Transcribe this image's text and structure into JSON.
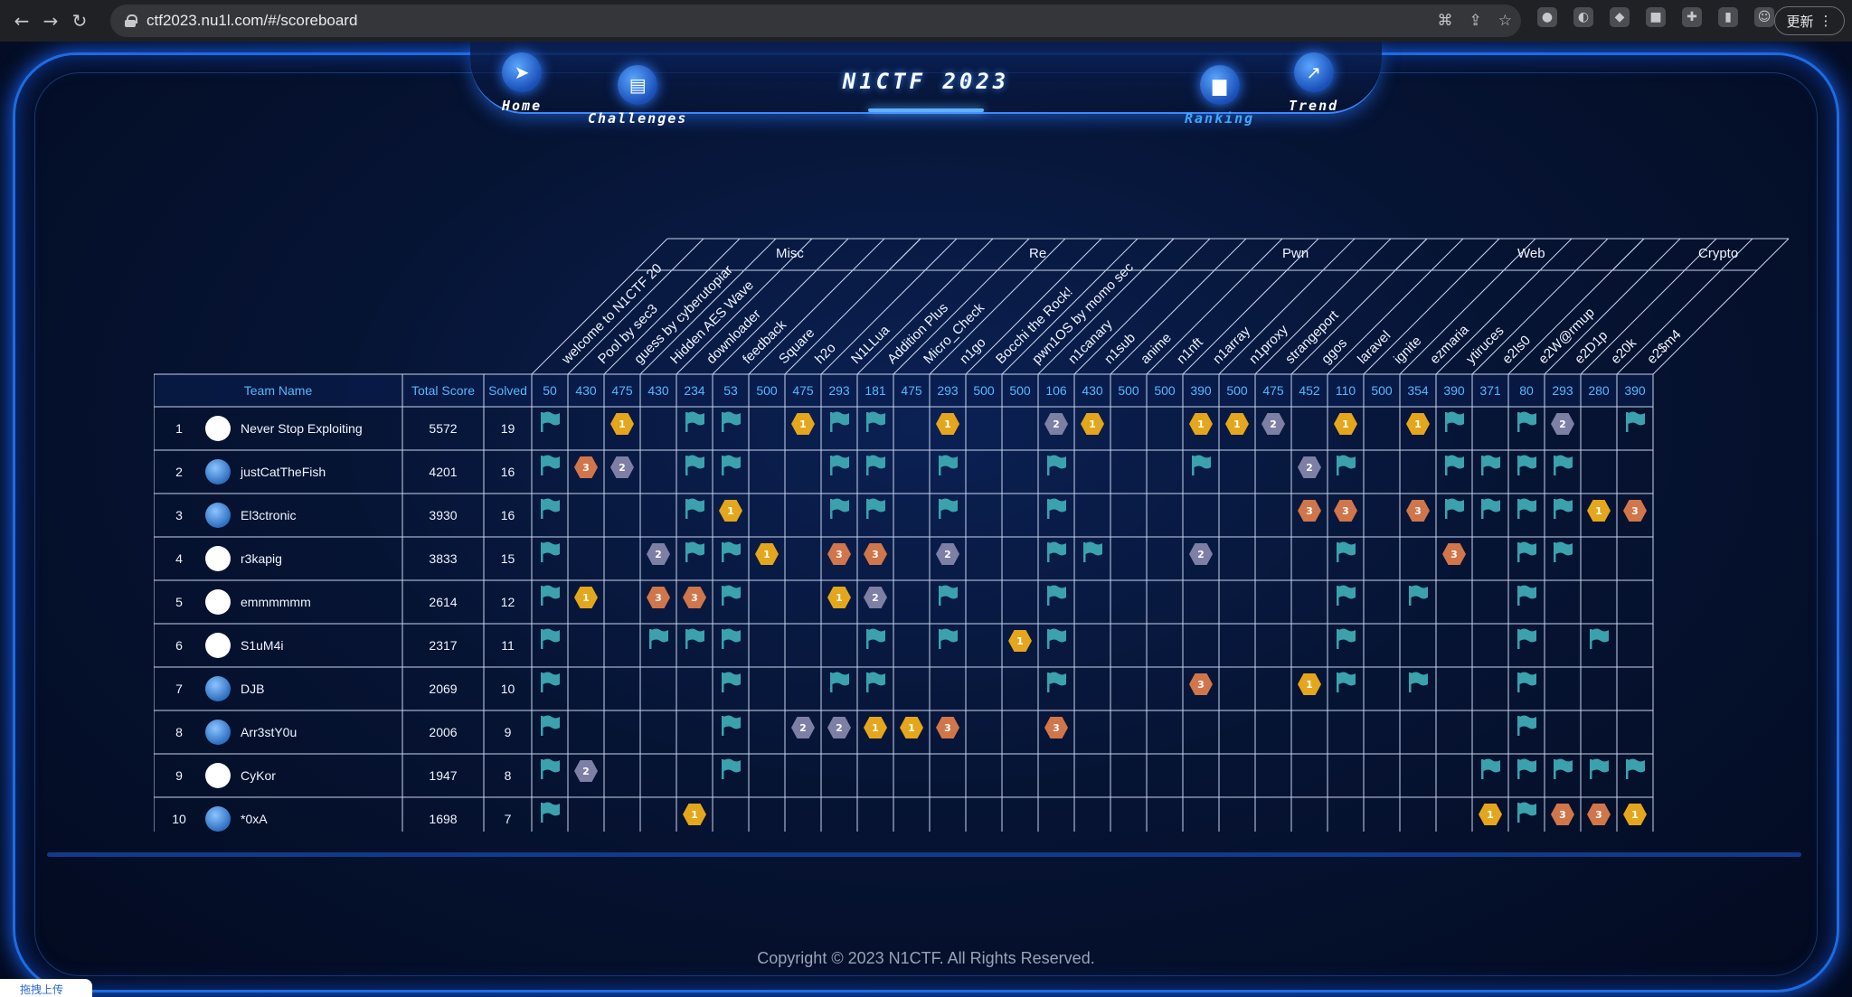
{
  "browser": {
    "url": "ctf2023.nu1l.com/#/scoreboard",
    "update_label": "更新",
    "nav": {
      "back": "←",
      "forward": "→",
      "reload": "↻"
    }
  },
  "site": {
    "title": "N1CTF 2023",
    "nav": [
      {
        "label": "Home",
        "icon": "compass-icon",
        "active": false
      },
      {
        "label": "Challenges",
        "icon": "book-icon",
        "active": false
      },
      {
        "label": "Ranking",
        "icon": "bar-chart-icon",
        "active": true
      },
      {
        "label": "Trend",
        "icon": "trend-chart-icon",
        "active": false
      }
    ]
  },
  "scoreboard": {
    "columns": {
      "team": "Team Name",
      "total": "Total Score",
      "solved": "Solved"
    },
    "categories": [
      {
        "name": "Misc",
        "span": 7
      },
      {
        "name": "Re",
        "span": 7
      },
      {
        "name": "Pwn",
        "span": 7
      },
      {
        "name": "Web",
        "span": 6
      },
      {
        "name": "Crypto",
        "span": 4
      }
    ],
    "challenges": [
      {
        "name": "welcome to N1CTF 20",
        "points": "50"
      },
      {
        "name": "Pool by sec3",
        "points": "430"
      },
      {
        "name": "guess by cyberutopiar",
        "points": "475"
      },
      {
        "name": "Hidden AES Wave",
        "points": "430"
      },
      {
        "name": "downloader",
        "points": "234"
      },
      {
        "name": "feedback",
        "points": "53"
      },
      {
        "name": "Square",
        "points": "500"
      },
      {
        "name": "h2o",
        "points": "475"
      },
      {
        "name": "N1LLua",
        "points": "293"
      },
      {
        "name": "Addition Plus",
        "points": "181"
      },
      {
        "name": "Micro_Check",
        "points": "475"
      },
      {
        "name": "n1go",
        "points": "293"
      },
      {
        "name": "Bocchi the Rock!",
        "points": "500"
      },
      {
        "name": "pwn1OS by momo sec",
        "points": "500"
      },
      {
        "name": "n1canary",
        "points": "106"
      },
      {
        "name": "n1sub",
        "points": "430"
      },
      {
        "name": "anime",
        "points": "500"
      },
      {
        "name": "n1nft",
        "points": "500"
      },
      {
        "name": "n1array",
        "points": "390"
      },
      {
        "name": "n1proxy",
        "points": "500"
      },
      {
        "name": "strangeport",
        "points": "475"
      },
      {
        "name": "ggos",
        "points": "452"
      },
      {
        "name": "laravel",
        "points": "110"
      },
      {
        "name": "ignite",
        "points": "500"
      },
      {
        "name": "ezmaria",
        "points": "354"
      },
      {
        "name": "ytiruces",
        "points": "390"
      },
      {
        "name": "e2Is0",
        "points": "371"
      },
      {
        "name": "e2W@rmup",
        "points": "80"
      },
      {
        "name": "e2D1p",
        "points": "293"
      },
      {
        "name": "e20k",
        "points": "280"
      },
      {
        "name": "e2$m4",
        "points": "390"
      }
    ],
    "teams": [
      {
        "rank": "1",
        "name": "Never Stop Exploiting",
        "score": "5572",
        "solved": "19",
        "avatar": "logo-red",
        "cells": [
          "F",
          "",
          "1",
          "",
          "F",
          "F",
          "",
          "1",
          "F",
          "F",
          "",
          "1",
          "",
          "",
          "2",
          "1",
          "",
          "",
          "1",
          "1",
          "2",
          "",
          "1",
          "",
          "1",
          "F",
          "",
          "F",
          "2",
          "",
          "F"
        ]
      },
      {
        "rank": "2",
        "name": "justCatTheFish",
        "score": "4201",
        "solved": "16",
        "avatar": "globe",
        "cells": [
          "F",
          "3",
          "2",
          "",
          "F",
          "F",
          "",
          "",
          "F",
          "F",
          "",
          "F",
          "",
          "",
          "F",
          "",
          "",
          "",
          "F",
          "",
          "",
          "2",
          "F",
          "",
          "",
          "F",
          "F",
          "F",
          "F",
          "",
          ""
        ]
      },
      {
        "rank": "3",
        "name": "El3ctronic",
        "score": "3930",
        "solved": "16",
        "avatar": "globe",
        "cells": [
          "F",
          "",
          "",
          "",
          "F",
          "1",
          "",
          "",
          "F",
          "F",
          "",
          "F",
          "",
          "",
          "F",
          "",
          "",
          "",
          "",
          "",
          "",
          "3",
          "3",
          "",
          "3",
          "F",
          "F",
          "F",
          "F",
          "1",
          "3"
        ]
      },
      {
        "rank": "4",
        "name": "r3kapig",
        "score": "3833",
        "solved": "15",
        "avatar": "pig",
        "cells": [
          "F",
          "",
          "",
          "2",
          "F",
          "F",
          "1",
          "",
          "3",
          "3",
          "",
          "2",
          "",
          "",
          "F",
          "F",
          "",
          "",
          "2",
          "",
          "",
          "",
          "F",
          "",
          "",
          "3",
          "",
          "F",
          "F",
          "",
          ""
        ]
      },
      {
        "rank": "5",
        "name": "emmmmmm",
        "score": "2614",
        "solved": "12",
        "avatar": "cartoon",
        "cells": [
          "F",
          "1",
          "",
          "3",
          "3",
          "F",
          "",
          "",
          "1",
          "2",
          "",
          "F",
          "",
          "",
          "F",
          "",
          "",
          "",
          "",
          "",
          "",
          "",
          "F",
          "",
          "F",
          "",
          "",
          "F",
          "",
          "",
          ""
        ]
      },
      {
        "rank": "6",
        "name": "S1uM4i",
        "score": "2317",
        "solved": "11",
        "avatar": "cat",
        "cells": [
          "F",
          "",
          "",
          "F",
          "F",
          "F",
          "",
          "",
          "",
          "F",
          "",
          "F",
          "",
          "1",
          "F",
          "",
          "",
          "",
          "",
          "",
          "",
          "",
          "F",
          "",
          "",
          "",
          "",
          "F",
          "",
          "F",
          ""
        ]
      },
      {
        "rank": "7",
        "name": "DJB",
        "score": "2069",
        "solved": "10",
        "avatar": "globe",
        "cells": [
          "F",
          "",
          "",
          "",
          "",
          "F",
          "",
          "",
          "F",
          "F",
          "",
          "",
          "",
          "",
          "F",
          "",
          "",
          "",
          "3",
          "",
          "",
          "1",
          "F",
          "",
          "F",
          "",
          "",
          "F",
          "",
          "",
          ""
        ]
      },
      {
        "rank": "8",
        "name": "Arr3stY0u",
        "score": "2006",
        "solved": "9",
        "avatar": "globe",
        "cells": [
          "F",
          "",
          "",
          "",
          "",
          "F",
          "",
          "2",
          "2",
          "1",
          "1",
          "3",
          "",
          "",
          "3",
          "",
          "",
          "",
          "",
          "",
          "",
          "",
          "",
          "",
          "",
          "",
          "",
          "F",
          "",
          "",
          ""
        ]
      },
      {
        "rank": "9",
        "name": "CyKor",
        "score": "1947",
        "solved": "8",
        "avatar": "crest",
        "cells": [
          "F",
          "2",
          "",
          "",
          "",
          "F",
          "",
          "",
          "",
          "",
          "",
          "",
          "",
          "",
          "",
          "",
          "",
          "",
          "",
          "",
          "",
          "",
          "",
          "",
          "",
          "",
          "F",
          "F",
          "F",
          "F",
          "F"
        ]
      },
      {
        "rank": "10",
        "name": "*0xA",
        "score": "1698",
        "solved": "7",
        "avatar": "globe",
        "cells": [
          "F",
          "",
          "",
          "",
          "1",
          "",
          "",
          "",
          "",
          "",
          "",
          "",
          "",
          "",
          "",
          "",
          "",
          "",
          "",
          "",
          "",
          "",
          "",
          "",
          "",
          "",
          "1",
          "F",
          "3",
          "3",
          "1"
        ]
      }
    ]
  },
  "footer": {
    "copyright": "Copyright © 2023 N1CTF. All Rights Reserved."
  },
  "upload_tab": {
    "label": "拖拽上传"
  },
  "colors": {
    "accent": "#3d87ff",
    "flag": "#3ba2ad",
    "gold": "#e4a61c",
    "silver": "#7e7fa5",
    "bronze": "#d0764a",
    "header_text": "#55b8ff",
    "grid": "#c8d4ee"
  }
}
